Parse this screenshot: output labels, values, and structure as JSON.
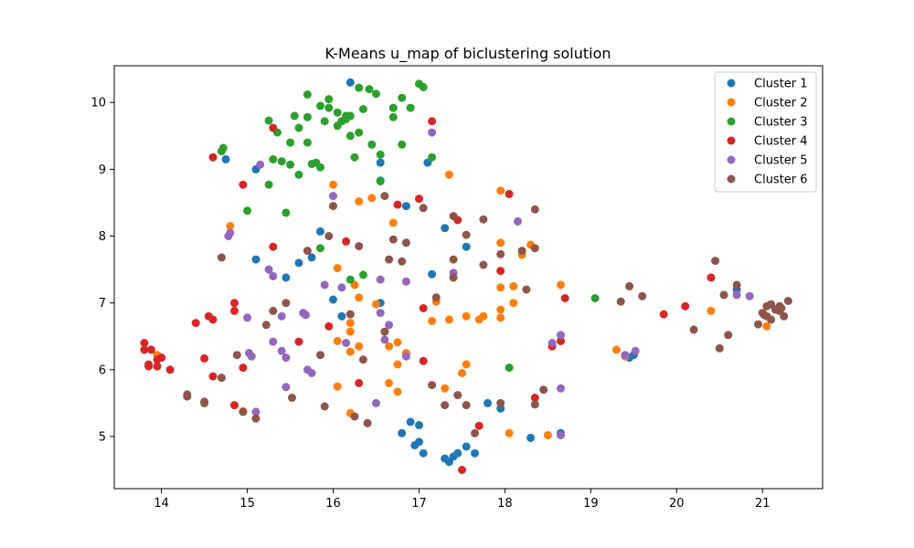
{
  "chart_data": {
    "type": "scatter",
    "title": "K-Means u_map of biclustering solution",
    "xlabel": "",
    "ylabel": "",
    "xlim": [
      13.45,
      21.7
    ],
    "ylim": [
      4.22,
      10.55
    ],
    "xticks": [
      14,
      15,
      16,
      17,
      18,
      19,
      20,
      21
    ],
    "yticks": [
      5,
      6,
      7,
      8,
      9,
      10
    ],
    "grid": false,
    "legend_position": "top-right",
    "series": [
      {
        "name": "Cluster 1",
        "color": "#1f77b4",
        "points": [
          [
            16.2,
            10.3
          ],
          [
            14.75,
            9.15
          ],
          [
            15.1,
            9.0
          ],
          [
            16.55,
            9.1
          ],
          [
            17.1,
            9.1
          ],
          [
            16.55,
            8.83
          ],
          [
            16.85,
            8.45
          ],
          [
            15.85,
            8.07
          ],
          [
            17.3,
            8.12
          ],
          [
            17.55,
            7.84
          ],
          [
            15.6,
            7.6
          ],
          [
            15.75,
            7.68
          ],
          [
            15.1,
            7.65
          ],
          [
            15.45,
            7.38
          ],
          [
            16.0,
            7.05
          ],
          [
            16.55,
            7.0
          ],
          [
            16.1,
            6.8
          ],
          [
            17.15,
            7.43
          ],
          [
            17.8,
            5.5
          ],
          [
            17.95,
            5.42
          ],
          [
            16.8,
            5.05
          ],
          [
            16.9,
            5.22
          ],
          [
            17.0,
            5.17
          ],
          [
            16.95,
            4.87
          ],
          [
            17.0,
            4.92
          ],
          [
            17.05,
            4.75
          ],
          [
            17.3,
            4.67
          ],
          [
            17.35,
            4.62
          ],
          [
            17.4,
            4.7
          ],
          [
            17.45,
            4.75
          ],
          [
            17.55,
            4.85
          ],
          [
            17.65,
            4.75
          ],
          [
            18.3,
            4.98
          ],
          [
            18.65,
            5.05
          ],
          [
            19.45,
            6.18
          ],
          [
            19.5,
            6.22
          ],
          [
            20.7,
            7.2
          ]
        ]
      },
      {
        "name": "Cluster 2",
        "color": "#ff7f0e",
        "points": [
          [
            14.8,
            8.15
          ],
          [
            13.95,
            6.22
          ],
          [
            14.95,
            5.38
          ],
          [
            16.0,
            8.77
          ],
          [
            16.3,
            8.52
          ],
          [
            16.45,
            8.57
          ],
          [
            16.7,
            8.2
          ],
          [
            17.35,
            8.92
          ],
          [
            17.95,
            8.68
          ],
          [
            17.95,
            7.9
          ],
          [
            18.2,
            7.72
          ],
          [
            18.3,
            7.87
          ],
          [
            16.05,
            7.52
          ],
          [
            16.25,
            7.27
          ],
          [
            16.3,
            7.08
          ],
          [
            16.5,
            6.98
          ],
          [
            16.2,
            6.7
          ],
          [
            16.2,
            6.57
          ],
          [
            16.05,
            6.43
          ],
          [
            16.3,
            6.35
          ],
          [
            16.2,
            6.27
          ],
          [
            16.65,
            6.35
          ],
          [
            16.75,
            6.41
          ],
          [
            16.75,
            6.08
          ],
          [
            16.85,
            6.25
          ],
          [
            16.65,
            5.8
          ],
          [
            16.75,
            5.67
          ],
          [
            17.2,
            7.02
          ],
          [
            17.35,
            6.75
          ],
          [
            17.55,
            6.8
          ],
          [
            17.7,
            6.75
          ],
          [
            17.75,
            6.8
          ],
          [
            17.95,
            6.9
          ],
          [
            17.95,
            6.78
          ],
          [
            17.95,
            7.23
          ],
          [
            18.1,
            7.0
          ],
          [
            18.1,
            7.25
          ],
          [
            17.5,
            5.95
          ],
          [
            17.55,
            6.08
          ],
          [
            17.3,
            5.72
          ],
          [
            16.05,
            5.75
          ],
          [
            16.2,
            5.35
          ],
          [
            18.05,
            5.05
          ],
          [
            18.5,
            5.02
          ],
          [
            18.65,
            7.27
          ],
          [
            19.3,
            6.3
          ],
          [
            19.4,
            6.2
          ],
          [
            20.4,
            6.88
          ],
          [
            21.05,
            6.65
          ],
          [
            17.15,
            6.73
          ]
        ]
      },
      {
        "name": "Cluster 3",
        "color": "#2ca02c",
        "points": [
          [
            15.7,
            10.12
          ],
          [
            15.95,
            10.05
          ],
          [
            16.3,
            10.22
          ],
          [
            16.42,
            10.2
          ],
          [
            16.5,
            10.13
          ],
          [
            17.0,
            10.28
          ],
          [
            17.05,
            10.23
          ],
          [
            15.85,
            9.95
          ],
          [
            15.95,
            9.92
          ],
          [
            16.05,
            9.85
          ],
          [
            16.15,
            9.8
          ],
          [
            16.2,
            9.8
          ],
          [
            16.35,
            9.9
          ],
          [
            16.8,
            10.07
          ],
          [
            16.7,
            9.92
          ],
          [
            16.9,
            9.92
          ],
          [
            15.25,
            9.73
          ],
          [
            15.55,
            9.8
          ],
          [
            15.7,
            9.78
          ],
          [
            15.9,
            9.72
          ],
          [
            16.05,
            9.65
          ],
          [
            16.1,
            9.72
          ],
          [
            16.15,
            9.75
          ],
          [
            16.2,
            9.5
          ],
          [
            16.3,
            9.55
          ],
          [
            16.7,
            9.78
          ],
          [
            15.35,
            9.55
          ],
          [
            15.6,
            9.62
          ],
          [
            15.5,
            9.4
          ],
          [
            15.7,
            9.4
          ],
          [
            16.45,
            9.37
          ],
          [
            16.8,
            9.37
          ],
          [
            14.7,
            9.27
          ],
          [
            14.72,
            9.32
          ],
          [
            15.3,
            9.15
          ],
          [
            15.4,
            9.12
          ],
          [
            15.5,
            9.07
          ],
          [
            15.75,
            9.08
          ],
          [
            15.8,
            9.1
          ],
          [
            15.85,
            9.03
          ],
          [
            15.6,
            8.92
          ],
          [
            16.25,
            9.18
          ],
          [
            16.55,
            9.22
          ],
          [
            17.15,
            9.18
          ],
          [
            16.55,
            8.82
          ],
          [
            15.25,
            8.77
          ],
          [
            15.0,
            8.38
          ],
          [
            15.45,
            8.35
          ],
          [
            15.85,
            7.82
          ],
          [
            16.2,
            7.35
          ],
          [
            16.35,
            7.42
          ],
          [
            19.05,
            7.07
          ],
          [
            18.05,
            6.03
          ]
        ]
      },
      {
        "name": "Cluster 4",
        "color": "#d62728",
        "points": [
          [
            15.3,
            9.62
          ],
          [
            14.6,
            9.18
          ],
          [
            14.95,
            8.77
          ],
          [
            15.3,
            7.84
          ],
          [
            17.15,
            9.72
          ],
          [
            16.75,
            8.47
          ],
          [
            17.0,
            8.56
          ],
          [
            18.05,
            8.63
          ],
          [
            17.45,
            8.24
          ],
          [
            16.15,
            7.92
          ],
          [
            17.95,
            7.48
          ],
          [
            14.85,
            7.0
          ],
          [
            14.85,
            6.88
          ],
          [
            14.55,
            6.8
          ],
          [
            14.6,
            6.75
          ],
          [
            14.4,
            6.7
          ],
          [
            15.95,
            6.65
          ],
          [
            15.6,
            6.42
          ],
          [
            17.05,
            6.92
          ],
          [
            13.8,
            6.4
          ],
          [
            13.8,
            6.3
          ],
          [
            13.88,
            6.3
          ],
          [
            13.95,
            6.15
          ],
          [
            14.0,
            6.18
          ],
          [
            13.85,
            6.08
          ],
          [
            13.85,
            6.05
          ],
          [
            13.95,
            6.05
          ],
          [
            14.1,
            6.0
          ],
          [
            14.5,
            6.17
          ],
          [
            14.95,
            6.03
          ],
          [
            14.6,
            5.9
          ],
          [
            17.05,
            6.13
          ],
          [
            16.3,
            5.8
          ],
          [
            14.85,
            5.47
          ],
          [
            17.7,
            5.16
          ],
          [
            17.5,
            4.5
          ],
          [
            18.35,
            5.58
          ],
          [
            18.55,
            6.35
          ],
          [
            18.65,
            6.43
          ],
          [
            18.7,
            7.07
          ],
          [
            19.85,
            6.83
          ],
          [
            20.1,
            6.95
          ],
          [
            20.4,
            7.38
          ]
        ]
      },
      {
        "name": "Cluster 5",
        "color": "#9467bd",
        "points": [
          [
            15.15,
            9.07
          ],
          [
            16.0,
            8.6
          ],
          [
            14.8,
            8.05
          ],
          [
            14.78,
            8.0
          ],
          [
            18.15,
            8.22
          ],
          [
            15.25,
            7.5
          ],
          [
            15.3,
            7.4
          ],
          [
            15.9,
            7.27
          ],
          [
            16.1,
            7.23
          ],
          [
            16.55,
            7.35
          ],
          [
            16.85,
            7.32
          ],
          [
            17.4,
            7.45
          ],
          [
            15.0,
            6.78
          ],
          [
            15.4,
            6.8
          ],
          [
            15.65,
            6.85
          ],
          [
            15.68,
            6.82
          ],
          [
            16.55,
            6.85
          ],
          [
            16.15,
            6.4
          ],
          [
            16.65,
            6.67
          ],
          [
            16.6,
            6.45
          ],
          [
            15.3,
            6.42
          ],
          [
            15.4,
            6.28
          ],
          [
            15.45,
            6.18
          ],
          [
            15.02,
            6.25
          ],
          [
            15.05,
            6.2
          ],
          [
            16.85,
            6.2
          ],
          [
            15.7,
            6.0
          ],
          [
            15.75,
            5.95
          ],
          [
            15.45,
            5.74
          ],
          [
            16.5,
            5.5
          ],
          [
            15.1,
            5.37
          ],
          [
            18.55,
            6.4
          ],
          [
            18.65,
            6.52
          ],
          [
            19.4,
            6.22
          ],
          [
            19.52,
            6.28
          ],
          [
            18.65,
            5.72
          ],
          [
            18.65,
            5.02
          ],
          [
            20.7,
            7.12
          ],
          [
            20.85,
            7.1
          ],
          [
            17.15,
            9.55
          ]
        ]
      },
      {
        "name": "Cluster 6",
        "color": "#8c564b",
        "points": [
          [
            16.0,
            8.45
          ],
          [
            16.6,
            8.6
          ],
          [
            17.05,
            8.42
          ],
          [
            17.4,
            8.3
          ],
          [
            17.55,
            8.02
          ],
          [
            17.75,
            8.25
          ],
          [
            15.95,
            8.0
          ],
          [
            16.3,
            7.85
          ],
          [
            16.7,
            7.95
          ],
          [
            16.85,
            7.9
          ],
          [
            18.35,
            8.4
          ],
          [
            18.2,
            7.78
          ],
          [
            18.35,
            7.82
          ],
          [
            17.95,
            7.73
          ],
          [
            15.7,
            7.78
          ],
          [
            14.7,
            7.68
          ],
          [
            16.65,
            7.65
          ],
          [
            16.8,
            7.62
          ],
          [
            17.4,
            7.65
          ],
          [
            17.4,
            7.38
          ],
          [
            17.75,
            7.57
          ],
          [
            18.25,
            7.2
          ],
          [
            15.45,
            7.0
          ],
          [
            15.3,
            6.88
          ],
          [
            15.22,
            6.67
          ],
          [
            17.2,
            7.08
          ],
          [
            16.2,
            6.83
          ],
          [
            16.6,
            6.57
          ],
          [
            15.85,
            6.22
          ],
          [
            14.88,
            6.22
          ],
          [
            16.35,
            6.15
          ],
          [
            14.7,
            5.88
          ],
          [
            17.15,
            5.77
          ],
          [
            17.45,
            5.62
          ],
          [
            17.3,
            5.47
          ],
          [
            17.55,
            5.47
          ],
          [
            17.95,
            5.5
          ],
          [
            18.35,
            5.48
          ],
          [
            18.45,
            5.7
          ],
          [
            15.52,
            5.58
          ],
          [
            14.3,
            5.63
          ],
          [
            14.3,
            5.6
          ],
          [
            14.5,
            5.52
          ],
          [
            14.5,
            5.5
          ],
          [
            14.95,
            5.37
          ],
          [
            15.1,
            5.27
          ],
          [
            15.9,
            5.45
          ],
          [
            16.25,
            5.3
          ],
          [
            16.4,
            5.2
          ],
          [
            17.65,
            5.05
          ],
          [
            19.35,
            7.02
          ],
          [
            19.45,
            7.25
          ],
          [
            19.6,
            7.1
          ],
          [
            20.2,
            6.6
          ],
          [
            20.45,
            7.63
          ],
          [
            20.55,
            7.12
          ],
          [
            20.6,
            6.52
          ],
          [
            20.5,
            6.32
          ],
          [
            20.7,
            7.27
          ],
          [
            20.95,
            6.68
          ],
          [
            21.0,
            6.85
          ],
          [
            21.05,
            6.95
          ],
          [
            21.05,
            6.8
          ],
          [
            21.1,
            6.98
          ],
          [
            21.1,
            6.75
          ],
          [
            21.15,
            6.9
          ],
          [
            21.2,
            6.95
          ],
          [
            21.2,
            6.88
          ],
          [
            21.22,
            6.92
          ],
          [
            21.25,
            6.8
          ],
          [
            21.3,
            7.03
          ],
          [
            21.02,
            6.82
          ]
        ]
      }
    ]
  }
}
